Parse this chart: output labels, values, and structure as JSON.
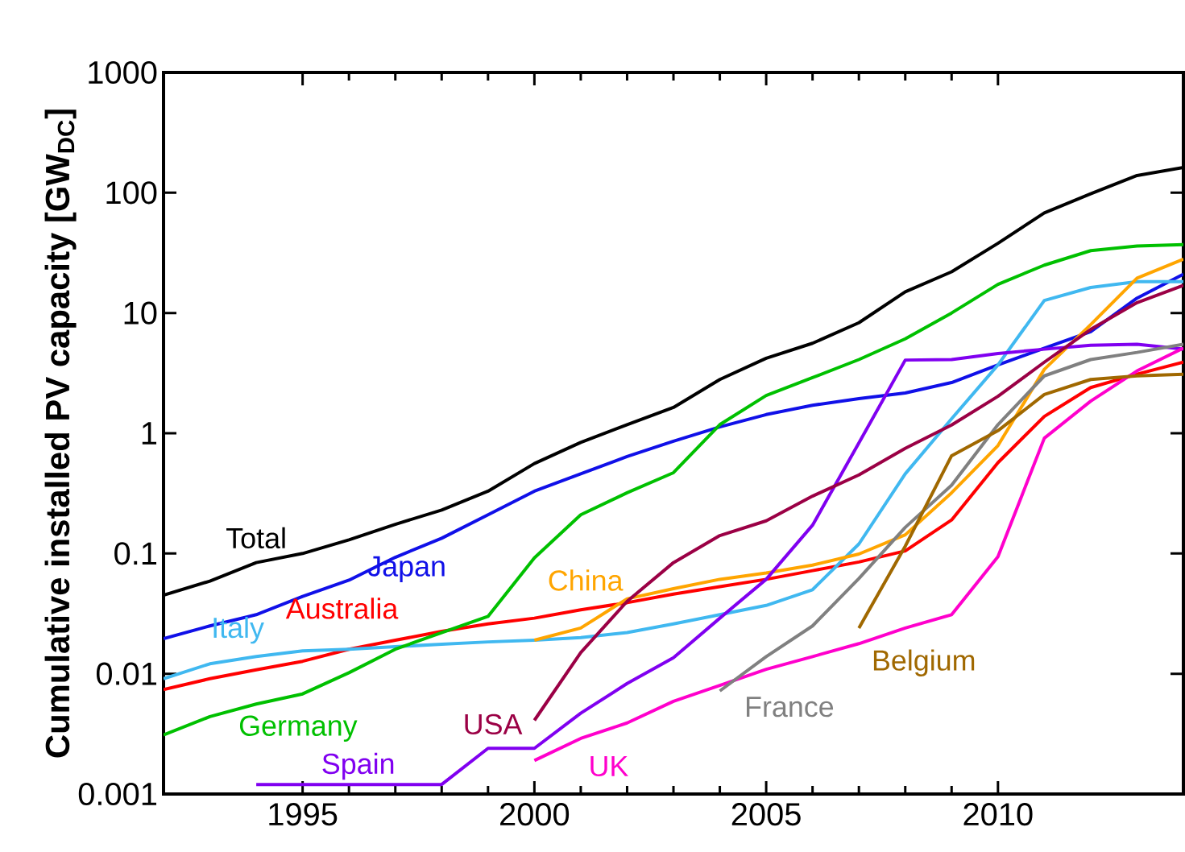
{
  "chart_data": {
    "type": "line",
    "ylabel": "Cumulative installed PV capacity [GW$_{DC}$]",
    "log": "y",
    "xlim": [
      1992,
      2014
    ],
    "xticks": [
      1995,
      2000,
      2005,
      2010
    ],
    "ylim": [
      0.001,
      1000
    ],
    "yticks": [
      0.001,
      0.01,
      0.1,
      1,
      10,
      100,
      1000
    ],
    "series": [
      {
        "name": "Total",
        "color": "#000000",
        "x": [
          1992,
          1993,
          1994,
          1995,
          1996,
          1997,
          1998,
          1999,
          2000,
          2001,
          2002,
          2003,
          2004,
          2005,
          2006,
          2007,
          2008,
          2009,
          2010,
          2011,
          2012,
          2013,
          2014
        ],
        "values": [
          0.045,
          0.059,
          0.084,
          0.1,
          0.13,
          0.175,
          0.23,
          0.33,
          0.56,
          0.84,
          1.18,
          1.64,
          2.8,
          4.2,
          5.6,
          8.3,
          15,
          22,
          38,
          68,
          98,
          139,
          162
        ]
      },
      {
        "name": "Japan",
        "color": "#1010e8",
        "x": [
          1992,
          1993,
          1994,
          1995,
          1996,
          1997,
          1998,
          1999,
          2000,
          2001,
          2002,
          2003,
          2004,
          2005,
          2006,
          2007,
          2008,
          2009,
          2010,
          2011,
          2012,
          2013,
          2014
        ],
        "values": [
          0.0196,
          0.025,
          0.031,
          0.044,
          0.06,
          0.093,
          0.134,
          0.21,
          0.33,
          0.46,
          0.64,
          0.86,
          1.13,
          1.43,
          1.71,
          1.94,
          2.16,
          2.64,
          3.7,
          5.1,
          7,
          13.3,
          21
        ]
      },
      {
        "name": "Australia",
        "color": "#ff0000",
        "x": [
          1992,
          1993,
          1994,
          1995,
          1996,
          1997,
          1998,
          1999,
          2000,
          2001,
          2002,
          2003,
          2004,
          2005,
          2006,
          2007,
          2008,
          2009,
          2010,
          2011,
          2012,
          2013,
          2014
        ],
        "values": [
          0.0074,
          0.0091,
          0.0108,
          0.0127,
          0.016,
          0.019,
          0.0225,
          0.026,
          0.029,
          0.034,
          0.039,
          0.046,
          0.053,
          0.061,
          0.072,
          0.085,
          0.105,
          0.19,
          0.57,
          1.38,
          2.4,
          3.1,
          3.9
        ]
      },
      {
        "name": "Italy",
        "color": "#40b8f0",
        "x": [
          1992,
          1993,
          1994,
          1995,
          1996,
          1997,
          1998,
          1999,
          2000,
          2001,
          2002,
          2003,
          2004,
          2005,
          2006,
          2007,
          2008,
          2009,
          2010,
          2011,
          2012,
          2013,
          2014
        ],
        "values": [
          0.0091,
          0.0121,
          0.0139,
          0.0155,
          0.016,
          0.0168,
          0.0176,
          0.0184,
          0.019,
          0.02,
          0.022,
          0.026,
          0.031,
          0.037,
          0.05,
          0.12,
          0.46,
          1.32,
          3.7,
          12.7,
          16.3,
          18.2,
          18.2
        ]
      },
      {
        "name": "China",
        "color": "#ffa500",
        "x": [
          2000,
          2001,
          2002,
          2003,
          2004,
          2005,
          2006,
          2007,
          2008,
          2009,
          2010,
          2011,
          2012,
          2013,
          2014
        ],
        "values": [
          0.019,
          0.024,
          0.042,
          0.051,
          0.061,
          0.069,
          0.08,
          0.099,
          0.143,
          0.32,
          0.79,
          3.4,
          8,
          19.5,
          28
        ]
      },
      {
        "name": "Germany",
        "color": "#00c000",
        "x": [
          1992,
          1993,
          1994,
          1995,
          1996,
          1997,
          1998,
          1999,
          2000,
          2001,
          2002,
          2003,
          2004,
          2005,
          2006,
          2007,
          2008,
          2009,
          2010,
          2011,
          2012,
          2013,
          2014
        ],
        "values": [
          0.0031,
          0.0044,
          0.0056,
          0.0068,
          0.0102,
          0.016,
          0.022,
          0.03,
          0.092,
          0.21,
          0.32,
          0.47,
          1.18,
          2.06,
          2.9,
          4.1,
          6.1,
          10,
          17.3,
          25,
          33,
          36,
          37
        ]
      },
      {
        "name": "Spain",
        "color": "#8000f0",
        "x": [
          1994,
          1995,
          1996,
          1997,
          1998,
          1999,
          2000,
          2001,
          2002,
          2003,
          2004,
          2005,
          2006,
          2007,
          2008,
          2009,
          2010,
          2011,
          2012,
          2013,
          2014
        ],
        "values": [
          0.0012,
          0.0012,
          0.0012,
          0.0012,
          0.0012,
          0.0024,
          0.0024,
          0.0047,
          0.0083,
          0.0136,
          0.029,
          0.061,
          0.172,
          0.83,
          4.06,
          4.1,
          4.6,
          5.0,
          5.4,
          5.5,
          5.0
        ]
      },
      {
        "name": "USA",
        "color": "#9b0045",
        "x": [
          2000,
          2001,
          2002,
          2003,
          2004,
          2005,
          2006,
          2007,
          2008,
          2009,
          2010,
          2011,
          2012,
          2013,
          2014
        ],
        "values": [
          0.0041,
          0.015,
          0.04,
          0.084,
          0.141,
          0.187,
          0.3,
          0.45,
          0.75,
          1.17,
          2.03,
          3.9,
          7.3,
          12.2,
          17
        ]
      },
      {
        "name": "UK",
        "color": "#ff00cc",
        "x": [
          2000,
          2001,
          2002,
          2003,
          2004,
          2005,
          2006,
          2007,
          2008,
          2009,
          2010,
          2011,
          2012,
          2013,
          2014
        ],
        "values": [
          0.0019,
          0.0029,
          0.0039,
          0.0059,
          0.008,
          0.0109,
          0.0139,
          0.0178,
          0.024,
          0.031,
          0.094,
          0.91,
          1.85,
          3.3,
          5.1
        ]
      },
      {
        "name": "France",
        "color": "#808080",
        "x": [
          2004,
          2005,
          2006,
          2007,
          2008,
          2009,
          2010,
          2011,
          2012,
          2013,
          2014
        ],
        "values": [
          0.0072,
          0.0139,
          0.025,
          0.062,
          0.165,
          0.37,
          1.18,
          3.0,
          4.1,
          4.7,
          5.5
        ]
      },
      {
        "name": "Belgium",
        "color": "#a06800",
        "x": [
          2007,
          2008,
          2009,
          2010,
          2011,
          2012,
          2013,
          2014
        ],
        "values": [
          0.024,
          0.115,
          0.65,
          1.05,
          2.1,
          2.8,
          3.0,
          3.1
        ]
      }
    ]
  }
}
